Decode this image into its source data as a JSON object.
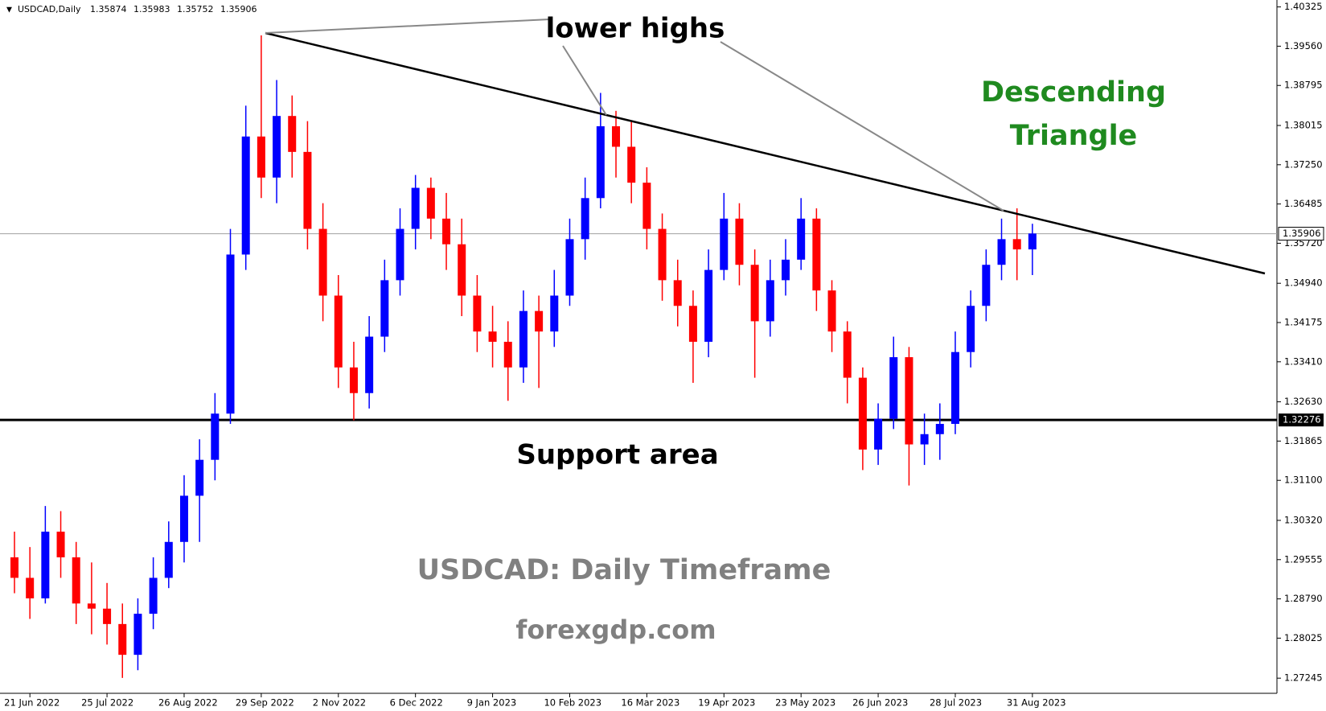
{
  "chart_data": {
    "type": "candlestick",
    "title": "USDCAD,Daily",
    "header_ohlc": [
      1.35874,
      1.35983,
      1.35752,
      1.35906
    ],
    "categories": [
      null,
      "21 Jun 2022",
      null,
      null,
      null,
      null,
      "25 Jul 2022",
      null,
      null,
      null,
      null,
      "26 Aug 2022",
      null,
      null,
      null,
      null,
      "29 Sep 2022",
      null,
      null,
      null,
      null,
      "2 Nov 2022",
      null,
      null,
      null,
      null,
      "6 Dec 2022",
      null,
      null,
      null,
      null,
      "9 Jan 2023",
      null,
      null,
      null,
      null,
      "10 Feb 2023",
      null,
      null,
      null,
      null,
      "16 Mar 2023",
      null,
      null,
      null,
      null,
      "19 Apr 2023",
      null,
      null,
      null,
      null,
      "23 May 2023",
      null,
      null,
      null,
      null,
      "26 Jun 2023",
      null,
      null,
      null,
      null,
      "28 Jul 2023",
      null,
      null,
      null,
      null,
      "31 Aug 2023"
    ],
    "open": [
      1.296,
      1.292,
      1.288,
      1.301,
      1.296,
      1.287,
      1.286,
      1.283,
      1.277,
      1.285,
      1.292,
      1.299,
      1.308,
      1.315,
      1.324,
      1.355,
      1.378,
      1.37,
      1.382,
      1.375,
      1.36,
      1.347,
      1.333,
      1.328,
      1.339,
      1.35,
      1.36,
      1.368,
      1.362,
      1.357,
      1.347,
      1.34,
      1.338,
      1.333,
      1.344,
      1.34,
      1.347,
      1.358,
      1.366,
      1.38,
      1.376,
      1.369,
      1.36,
      1.35,
      1.345,
      1.338,
      1.352,
      1.362,
      1.353,
      1.342,
      1.35,
      1.354,
      1.362,
      1.348,
      1.34,
      1.331,
      1.317,
      1.323,
      1.335,
      1.318,
      1.32,
      1.322,
      1.336,
      1.345,
      1.353,
      1.358,
      1.356
    ],
    "high": [
      1.301,
      1.298,
      1.306,
      1.305,
      1.299,
      1.295,
      1.291,
      1.287,
      1.288,
      1.296,
      1.303,
      1.312,
      1.319,
      1.328,
      1.36,
      1.384,
      1.3977,
      1.389,
      1.386,
      1.381,
      1.365,
      1.351,
      1.338,
      1.343,
      1.354,
      1.364,
      1.3705,
      1.37,
      1.367,
      1.362,
      1.351,
      1.345,
      1.342,
      1.348,
      1.347,
      1.352,
      1.362,
      1.37,
      1.3865,
      1.383,
      1.381,
      1.372,
      1.363,
      1.354,
      1.348,
      1.356,
      1.367,
      1.365,
      1.356,
      1.354,
      1.358,
      1.366,
      1.364,
      1.35,
      1.342,
      1.333,
      1.326,
      1.339,
      1.337,
      1.324,
      1.326,
      1.34,
      1.348,
      1.356,
      1.362,
      1.364,
      1.361
    ],
    "low": [
      1.289,
      1.284,
      1.287,
      1.292,
      1.283,
      1.281,
      1.279,
      1.2725,
      1.274,
      1.282,
      1.29,
      1.295,
      1.299,
      1.311,
      1.322,
      1.352,
      1.366,
      1.365,
      1.37,
      1.356,
      1.342,
      1.329,
      1.3227,
      1.325,
      1.336,
      1.347,
      1.356,
      1.358,
      1.352,
      1.343,
      1.336,
      1.333,
      1.3265,
      1.33,
      1.329,
      1.337,
      1.345,
      1.354,
      1.364,
      1.37,
      1.365,
      1.356,
      1.346,
      1.341,
      1.33,
      1.335,
      1.35,
      1.349,
      1.331,
      1.339,
      1.347,
      1.352,
      1.344,
      1.336,
      1.326,
      1.313,
      1.314,
      1.321,
      1.31,
      1.314,
      1.315,
      1.32,
      1.333,
      1.342,
      1.35,
      1.35,
      1.351
    ],
    "close": [
      1.292,
      1.288,
      1.301,
      1.296,
      1.287,
      1.286,
      1.283,
      1.277,
      1.285,
      1.292,
      1.299,
      1.308,
      1.315,
      1.324,
      1.355,
      1.378,
      1.37,
      1.382,
      1.375,
      1.36,
      1.347,
      1.333,
      1.328,
      1.339,
      1.35,
      1.36,
      1.368,
      1.362,
      1.357,
      1.347,
      1.34,
      1.338,
      1.333,
      1.344,
      1.34,
      1.347,
      1.358,
      1.366,
      1.38,
      1.376,
      1.369,
      1.36,
      1.35,
      1.345,
      1.338,
      1.352,
      1.362,
      1.353,
      1.342,
      1.35,
      1.354,
      1.362,
      1.348,
      1.34,
      1.331,
      1.317,
      1.323,
      1.335,
      1.318,
      1.32,
      1.322,
      1.336,
      1.345,
      1.353,
      1.358,
      1.356,
      1.3591
    ],
    "up_color": "#0000ff",
    "down_color": "#ff0000",
    "ylim": [
      1.2695,
      1.4046
    ],
    "yticks": [
      1.40325,
      {
        "value": 1.3956,
        "label": "1.39560"
      },
      1.38795,
      1.38015,
      {
        "value": 1.3725,
        "label": "1.37250"
      },
      1.36485,
      {
        "value": 1.3572,
        "label": "1.35720"
      },
      {
        "value": 1.3494,
        "label": "1.34940"
      },
      1.34175,
      {
        "value": 1.3341,
        "label": "1.33410"
      },
      {
        "value": 1.3263,
        "label": "1.32630"
      },
      1.31865,
      {
        "value": 1.311,
        "label": "1.31100"
      },
      {
        "value": 1.3032,
        "label": "1.30320"
      },
      1.29555,
      {
        "value": 1.2879,
        "label": "1.28790"
      },
      1.28025,
      1.27245
    ],
    "current_price": 1.35906,
    "support_level": 1.32276,
    "annotations": {
      "lower_highs": "lower highs",
      "pattern": "Descending Triangle",
      "support": "Support area",
      "timeframe": "USDCAD: Daily Timeframe",
      "website": "forexgdp.com"
    }
  }
}
